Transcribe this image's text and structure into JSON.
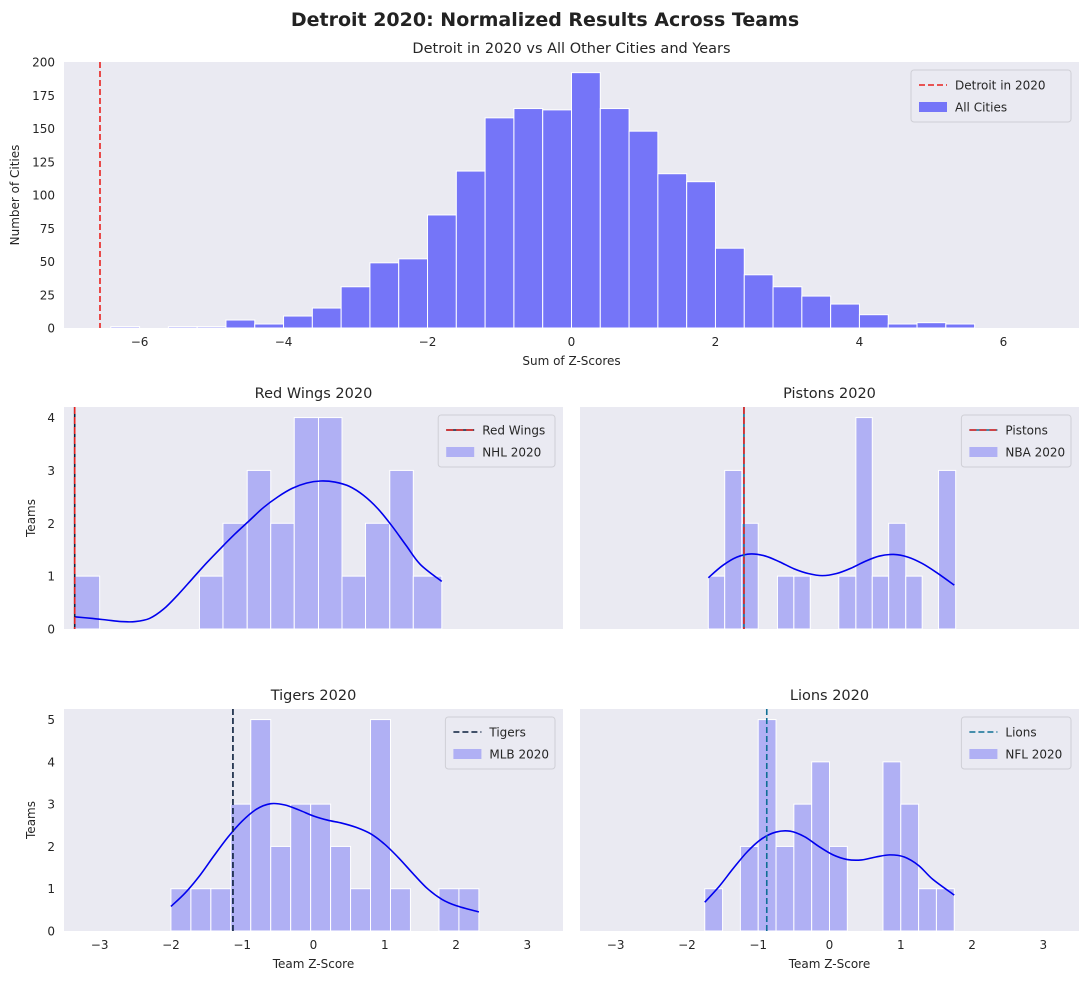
{
  "figure": {
    "suptitle": "Detroit 2020: Normalized Results Across Teams"
  },
  "colors": {
    "plot_bg": "#eaeaf2",
    "main_hist": "#7575f8",
    "sub_hist": "#b0b0f4",
    "kde": "#0000ee",
    "red": "#e8221f",
    "navy": "#0b1f3c",
    "teal": "#0f6f95"
  },
  "chart_data": [
    {
      "id": "main",
      "type": "histogram",
      "title": "Detroit in 2020 vs All Other Cities and Years",
      "xlabel": "Sum of Z-Scores",
      "ylabel": "Number of Cities",
      "xlim": [
        -7.05,
        7.05
      ],
      "ylim": [
        0,
        200
      ],
      "xticks": [
        -6,
        -4,
        -2,
        0,
        2,
        4,
        6
      ],
      "xtick_labels": [
        "−6",
        "−4",
        "−2",
        "0",
        "2",
        "4",
        "6"
      ],
      "yticks": [
        0,
        25,
        50,
        75,
        100,
        125,
        150,
        175,
        200
      ],
      "ytick_labels": [
        "0",
        "25",
        "50",
        "75",
        "100",
        "125",
        "150",
        "175",
        "200"
      ],
      "bin_start": -6.4,
      "bin_width": 0.4,
      "counts": [
        1,
        0,
        1,
        1,
        6,
        3,
        9,
        15,
        31,
        49,
        52,
        85,
        118,
        158,
        165,
        164,
        192,
        165,
        148,
        116,
        110,
        60,
        40,
        31,
        24,
        18,
        10,
        3,
        4,
        3
      ],
      "vline": {
        "x": -6.55,
        "style": "dashed",
        "label": "Detroit in 2020"
      },
      "legend": {
        "position": "top-right",
        "entries": [
          "Detroit in 2020",
          "All Cities"
        ]
      }
    },
    {
      "id": "redwings",
      "type": "histogram",
      "title": "Red Wings 2020",
      "xlabel": "",
      "ylabel": "Teams",
      "xlim": [
        -3.5,
        3.5
      ],
      "ylim": [
        0,
        4.2
      ],
      "yticks": [
        0,
        1,
        2,
        3,
        4
      ],
      "ytick_labels": [
        "0",
        "1",
        "2",
        "3",
        "4"
      ],
      "show_xticks": false,
      "bins": [
        [
          -3.35,
          -3.0,
          1
        ],
        [
          -1.6,
          -1.27,
          1
        ],
        [
          -1.27,
          -0.93,
          2
        ],
        [
          -0.93,
          -0.6,
          3
        ],
        [
          -0.6,
          -0.27,
          2
        ],
        [
          -0.27,
          0.07,
          4
        ],
        [
          0.07,
          0.4,
          4
        ],
        [
          0.4,
          0.73,
          1
        ],
        [
          0.73,
          1.07,
          2
        ],
        [
          1.07,
          1.4,
          3
        ],
        [
          1.4,
          1.8,
          1
        ]
      ],
      "kde": [
        [
          -3.35,
          0.23
        ],
        [
          -3.1,
          0.2
        ],
        [
          -2.9,
          0.17
        ],
        [
          -2.7,
          0.14
        ],
        [
          -2.5,
          0.14
        ],
        [
          -2.3,
          0.2
        ],
        [
          -2.1,
          0.38
        ],
        [
          -1.9,
          0.65
        ],
        [
          -1.7,
          0.95
        ],
        [
          -1.5,
          1.25
        ],
        [
          -1.3,
          1.53
        ],
        [
          -1.1,
          1.8
        ],
        [
          -0.9,
          2.05
        ],
        [
          -0.7,
          2.3
        ],
        [
          -0.5,
          2.5
        ],
        [
          -0.3,
          2.66
        ],
        [
          -0.1,
          2.76
        ],
        [
          0.1,
          2.8
        ],
        [
          0.3,
          2.78
        ],
        [
          0.5,
          2.7
        ],
        [
          0.7,
          2.53
        ],
        [
          0.9,
          2.28
        ],
        [
          1.1,
          1.95
        ],
        [
          1.3,
          1.58
        ],
        [
          1.5,
          1.22
        ],
        [
          1.8,
          0.9
        ]
      ],
      "vline": {
        "x": -3.35,
        "style": "dashdot",
        "label": "Red Wings"
      },
      "legend": {
        "position": "top-right",
        "entries": [
          "Red Wings",
          "NHL 2020"
        ]
      }
    },
    {
      "id": "pistons",
      "type": "histogram",
      "title": "Pistons 2020",
      "xlabel": "",
      "ylabel": "",
      "xlim": [
        -3.5,
        3.5
      ],
      "ylim": [
        0,
        4.2
      ],
      "show_xticks": false,
      "show_yticks": false,
      "bins": [
        [
          -1.7,
          -1.47,
          1
        ],
        [
          -1.47,
          -1.23,
          3
        ],
        [
          -1.23,
          -1.0,
          2
        ],
        [
          -0.73,
          -0.5,
          1
        ],
        [
          -0.5,
          -0.27,
          1
        ],
        [
          0.13,
          0.37,
          1
        ],
        [
          0.37,
          0.6,
          4
        ],
        [
          0.6,
          0.83,
          1
        ],
        [
          0.83,
          1.07,
          2
        ],
        [
          1.07,
          1.3,
          1
        ],
        [
          1.53,
          1.77,
          3
        ]
      ],
      "kde": [
        [
          -1.7,
          0.97
        ],
        [
          -1.5,
          1.2
        ],
        [
          -1.3,
          1.36
        ],
        [
          -1.1,
          1.42
        ],
        [
          -0.9,
          1.38
        ],
        [
          -0.7,
          1.27
        ],
        [
          -0.5,
          1.14
        ],
        [
          -0.3,
          1.05
        ],
        [
          -0.1,
          1.01
        ],
        [
          0.1,
          1.05
        ],
        [
          0.3,
          1.15
        ],
        [
          0.5,
          1.28
        ],
        [
          0.7,
          1.38
        ],
        [
          0.9,
          1.41
        ],
        [
          1.1,
          1.36
        ],
        [
          1.3,
          1.24
        ],
        [
          1.5,
          1.07
        ],
        [
          1.75,
          0.83
        ]
      ],
      "vline": {
        "x": -1.2,
        "style": "dashdot",
        "label": "Pistons"
      },
      "legend": {
        "position": "top-right",
        "entries": [
          "Pistons",
          "NBA 2020"
        ]
      }
    },
    {
      "id": "tigers",
      "type": "histogram",
      "title": "Tigers 2020",
      "xlabel": "Team Z-Score",
      "ylabel": "Teams",
      "xlim": [
        -3.5,
        3.5
      ],
      "ylim": [
        0,
        5.25
      ],
      "xticks": [
        -3,
        -2,
        -1,
        0,
        1,
        2,
        3
      ],
      "xtick_labels": [
        "−3",
        "−2",
        "−1",
        "0",
        "1",
        "2",
        "3"
      ],
      "yticks": [
        0,
        1,
        2,
        3,
        4,
        5
      ],
      "ytick_labels": [
        "0",
        "1",
        "2",
        "3",
        "4",
        "5"
      ],
      "bins": [
        [
          -2.0,
          -1.72,
          1
        ],
        [
          -1.72,
          -1.44,
          1
        ],
        [
          -1.44,
          -1.16,
          1
        ],
        [
          -1.16,
          -0.88,
          3
        ],
        [
          -0.88,
          -0.6,
          5
        ],
        [
          -0.6,
          -0.32,
          2
        ],
        [
          -0.32,
          -0.04,
          3
        ],
        [
          -0.04,
          0.24,
          3
        ],
        [
          0.24,
          0.52,
          2
        ],
        [
          0.52,
          0.8,
          1
        ],
        [
          0.8,
          1.08,
          5
        ],
        [
          1.08,
          1.36,
          1
        ],
        [
          1.76,
          2.04,
          1
        ],
        [
          2.04,
          2.32,
          1
        ]
      ],
      "kde": [
        [
          -2.0,
          0.58
        ],
        [
          -1.8,
          0.9
        ],
        [
          -1.6,
          1.3
        ],
        [
          -1.4,
          1.77
        ],
        [
          -1.2,
          2.22
        ],
        [
          -1.0,
          2.6
        ],
        [
          -0.8,
          2.88
        ],
        [
          -0.6,
          3.01
        ],
        [
          -0.4,
          2.98
        ],
        [
          -0.2,
          2.86
        ],
        [
          0.0,
          2.72
        ],
        [
          0.2,
          2.62
        ],
        [
          0.4,
          2.55
        ],
        [
          0.6,
          2.45
        ],
        [
          0.8,
          2.3
        ],
        [
          1.0,
          2.05
        ],
        [
          1.2,
          1.72
        ],
        [
          1.4,
          1.35
        ],
        [
          1.6,
          1.0
        ],
        [
          1.8,
          0.75
        ],
        [
          2.0,
          0.6
        ],
        [
          2.32,
          0.45
        ]
      ],
      "vline": {
        "x": -1.13,
        "style": "dashed",
        "label": "Tigers"
      },
      "legend": {
        "position": "top-right",
        "entries": [
          "Tigers",
          "MLB 2020"
        ]
      }
    },
    {
      "id": "lions",
      "type": "histogram",
      "title": "Lions 2020",
      "xlabel": "Team Z-Score",
      "ylabel": "",
      "xlim": [
        -3.5,
        3.5
      ],
      "ylim": [
        0,
        5.25
      ],
      "xticks": [
        -3,
        -2,
        -1,
        0,
        1,
        2,
        3
      ],
      "xtick_labels": [
        "−3",
        "−2",
        "−1",
        "0",
        "1",
        "2",
        "3"
      ],
      "show_yticks": false,
      "bins": [
        [
          -1.75,
          -1.5,
          1
        ],
        [
          -1.25,
          -1.0,
          2
        ],
        [
          -1.0,
          -0.75,
          5
        ],
        [
          -0.75,
          -0.5,
          2
        ],
        [
          -0.5,
          -0.25,
          3
        ],
        [
          -0.25,
          0.0,
          4
        ],
        [
          0.0,
          0.25,
          2
        ],
        [
          0.75,
          1.0,
          4
        ],
        [
          1.0,
          1.25,
          3
        ],
        [
          1.25,
          1.5,
          1
        ],
        [
          1.5,
          1.75,
          1
        ]
      ],
      "kde": [
        [
          -1.75,
          0.68
        ],
        [
          -1.55,
          1.05
        ],
        [
          -1.35,
          1.48
        ],
        [
          -1.15,
          1.88
        ],
        [
          -0.95,
          2.18
        ],
        [
          -0.75,
          2.34
        ],
        [
          -0.55,
          2.36
        ],
        [
          -0.35,
          2.23
        ],
        [
          -0.15,
          2.0
        ],
        [
          0.05,
          1.8
        ],
        [
          0.25,
          1.69
        ],
        [
          0.45,
          1.68
        ],
        [
          0.65,
          1.75
        ],
        [
          0.85,
          1.8
        ],
        [
          1.05,
          1.75
        ],
        [
          1.25,
          1.55
        ],
        [
          1.45,
          1.22
        ],
        [
          1.75,
          0.85
        ]
      ],
      "vline": {
        "x": -0.88,
        "style": "dashed",
        "label": "Lions"
      },
      "legend": {
        "position": "top-right",
        "entries": [
          "Lions",
          "NFL 2020"
        ]
      }
    }
  ]
}
